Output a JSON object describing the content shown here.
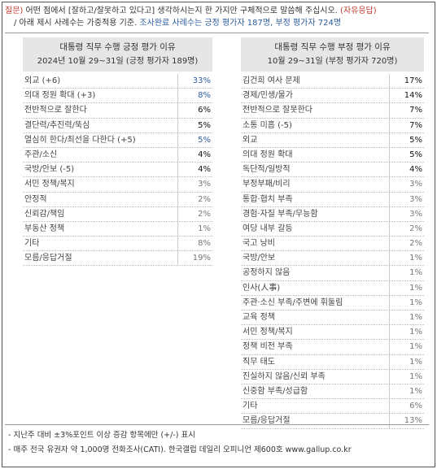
{
  "header": {
    "q_prefix": "질문)",
    "q_text": " 어떤 점에서 [잘하고/잘못하고 있다고] 생각하시는지 한 가지만 구체적으로 말씀해 주십시오.",
    "q_suffix": " (자유응답)",
    "note_prefix": "/ 아래 제시 사례수는 가중적용 기준. ",
    "note_highlight": "조사완료 사례수는 긍정 평가자 187명, 부정 평가자 724명"
  },
  "positive": {
    "title": "대통령 직무 수행 긍정 평가 이유",
    "subtitle": "2024년 10월 29~31일 (긍정 평가자 189명)",
    "rows": [
      {
        "label": "외교 (+6)",
        "value": "33%"
      },
      {
        "label": "의대 정원 확대 (+3)",
        "value": "8%"
      },
      {
        "label": "전반적으로 잘한다",
        "value": "6%"
      },
      {
        "label": "결단력/추진력/뚝심",
        "value": "5%"
      },
      {
        "label": "열심히 한다/최선을 다한다 (+5)",
        "value": "5%"
      },
      {
        "label": "주관/소신",
        "value": "4%"
      },
      {
        "label": "국방/안보 (-5)",
        "value": "4%"
      },
      {
        "label": "서민 정책/복지",
        "value": "3%"
      },
      {
        "label": "안정적",
        "value": "2%"
      },
      {
        "label": "신뢰감/책임",
        "value": "2%"
      },
      {
        "label": "부동산 정책",
        "value": "1%"
      },
      {
        "label": "기타",
        "value": "8%"
      },
      {
        "label": "모름/응답거절",
        "value": "19%"
      }
    ]
  },
  "negative": {
    "title": "대통령 직무 수행 부정 평가 이유",
    "subtitle": "10월 29~31일 (부정 평가자 720명)",
    "rows": [
      {
        "label": "김건희 여사 문제",
        "value": "17%"
      },
      {
        "label": "경제/민생/물가",
        "value": "14%"
      },
      {
        "label": "전반적으로 잘못한다",
        "value": "7%"
      },
      {
        "label": "소통 미흡 (-5)",
        "value": "7%"
      },
      {
        "label": "외교",
        "value": "5%"
      },
      {
        "label": "의대 정원 확대",
        "value": "5%"
      },
      {
        "label": "독단적/일방적",
        "value": "4%"
      },
      {
        "label": "부정부패/비리",
        "value": "3%"
      },
      {
        "label": "통합·협치 부족",
        "value": "3%"
      },
      {
        "label": "경험·자질 부족/무능함",
        "value": "3%"
      },
      {
        "label": "여당 내부 갈등",
        "value": "2%"
      },
      {
        "label": "국고 낭비",
        "value": "2%"
      },
      {
        "label": "국방/안보",
        "value": "1%"
      },
      {
        "label": "공정하지 않음",
        "value": "1%"
      },
      {
        "label": "인사(人事)",
        "value": "1%"
      },
      {
        "label": "주관·소신 부족/주변에 휘둘림",
        "value": "1%"
      },
      {
        "label": "교육 정책",
        "value": "1%"
      },
      {
        "label": "서민 정책/복지",
        "value": "1%"
      },
      {
        "label": "정책 비전 부족",
        "value": "1%"
      },
      {
        "label": "직무 태도",
        "value": "1%"
      },
      {
        "label": "진실하지 않음/신뢰 부족",
        "value": "1%"
      },
      {
        "label": "신중함 부족/성급함",
        "value": "1%"
      },
      {
        "label": "기타",
        "value": "6%"
      },
      {
        "label": "모름/응답거절",
        "value": "13%"
      }
    ]
  },
  "footer": {
    "line1": "- 지난주 대비 ±3%포인트 이상 증감 항목에만 (+/-) 표시",
    "line2": "- 매주 전국 유권자 약 1,000명 전화조사(CATI). 한국갤럽 데일리 오피니언 제600호 www.gallup.co.kr"
  },
  "colors": {
    "accent_red": "#c0392b",
    "accent_blue": "#2e5d9f",
    "panel_header_bg": "#e6e6e6"
  }
}
